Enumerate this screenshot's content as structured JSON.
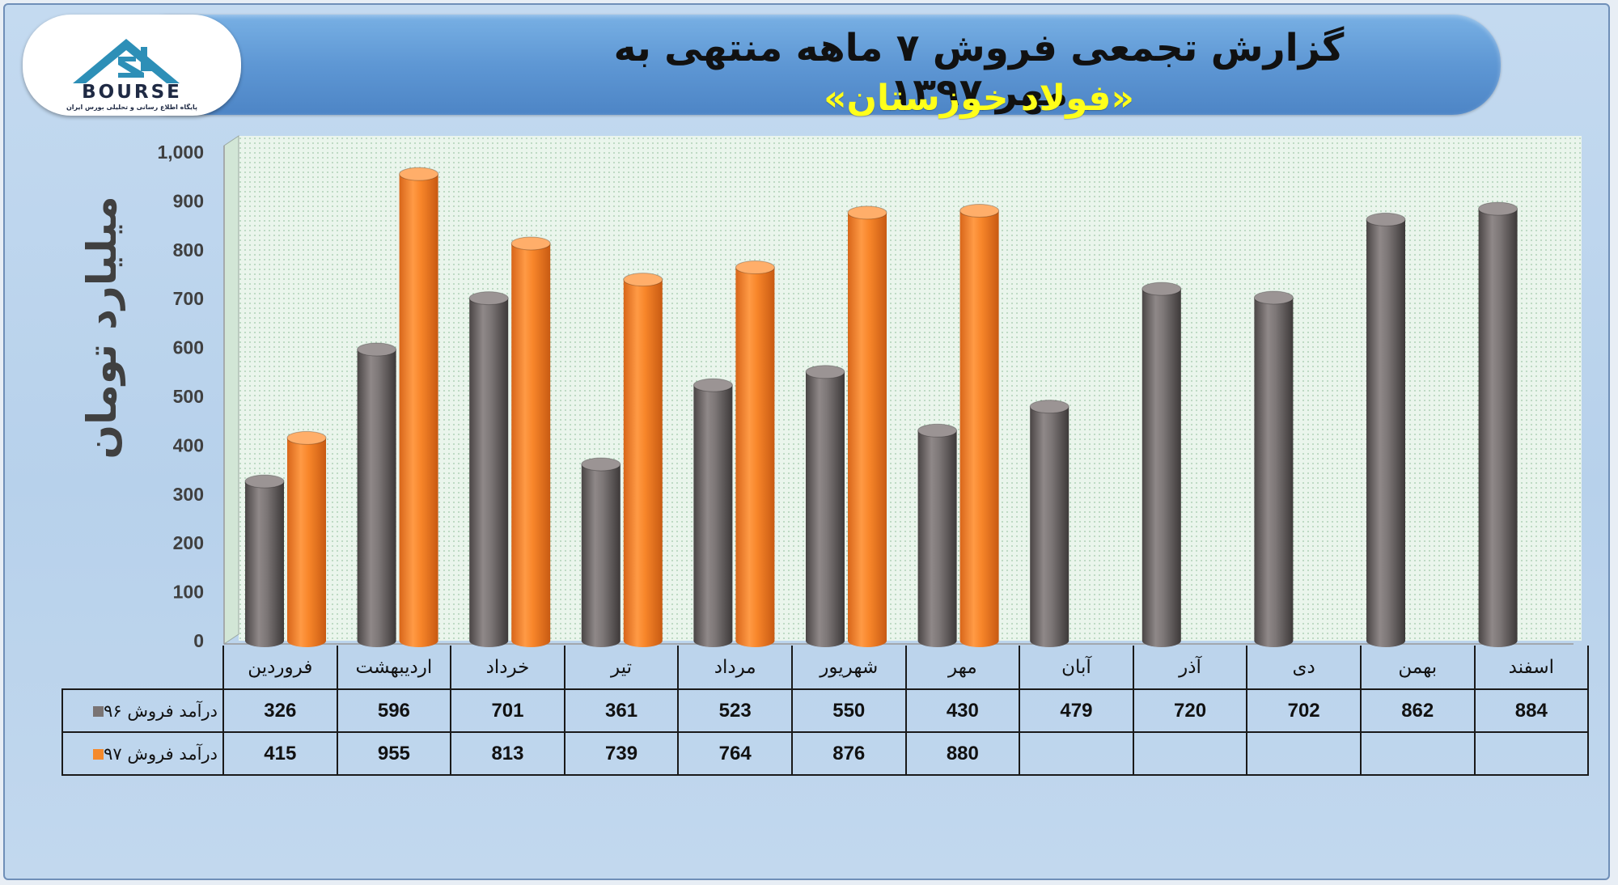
{
  "header": {
    "title": "گزارش تجمعی فروش ۷ ماهه منتهی به مهر ۱۳۹۷",
    "subtitle": "«فولاد خوزستان»"
  },
  "logo": {
    "wordmark": "BOURSE",
    "tagline": "پایگاه اطلاع رسانی و تحلیلی بورس ایران"
  },
  "colors": {
    "series_96": "#7a7474",
    "series_97": "#f58a2c",
    "plot_bg": "#e6f3e8"
  },
  "chart_data": {
    "type": "bar",
    "style": "3d-cylinder",
    "ylabel": "میلیارد تومان",
    "ylim": [
      0,
      1000
    ],
    "yticks": [
      "0",
      "100",
      "200",
      "300",
      "400",
      "500",
      "600",
      "700",
      "800",
      "900",
      "1,000"
    ],
    "categories": [
      "فروردین",
      "اردیبهشت",
      "خرداد",
      "تیر",
      "مرداد",
      "شهریور",
      "مهر",
      "آبان",
      "آذر",
      "دی",
      "بهمن",
      "اسفند"
    ],
    "series": [
      {
        "name": "درآمد فروش ۹۶",
        "color": "#7a7474",
        "values": [
          326,
          596,
          701,
          361,
          523,
          550,
          430,
          479,
          720,
          702,
          862,
          884
        ]
      },
      {
        "name": "درآمد فروش ۹۷",
        "color": "#f58a2c",
        "values": [
          415,
          955,
          813,
          739,
          764,
          876,
          880,
          null,
          null,
          null,
          null,
          null
        ]
      }
    ],
    "grid": false,
    "legend": "data-table"
  }
}
